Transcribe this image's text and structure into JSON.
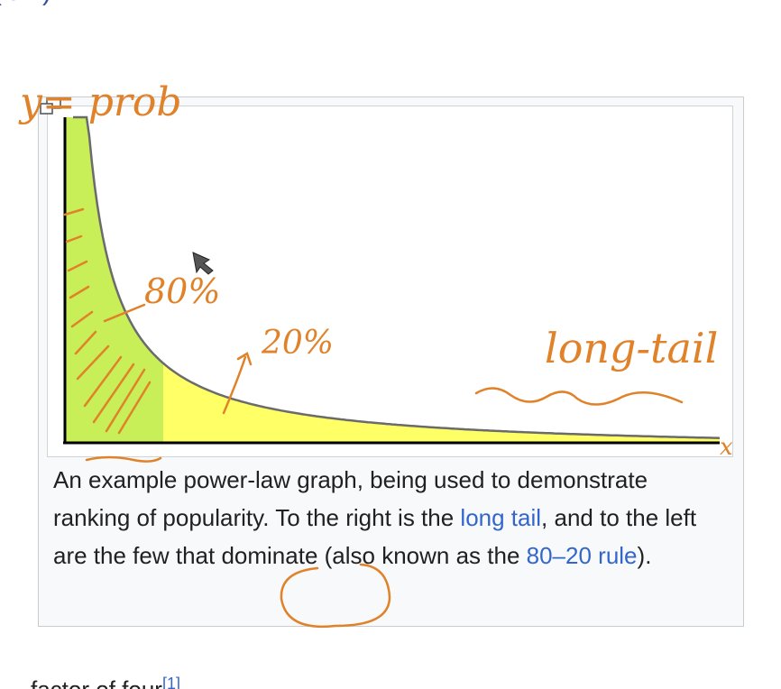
{
  "article": {
    "top_fragment": "(law).",
    "bottom_fragment": "factor of four",
    "bottom_reference": "[1]"
  },
  "figure": {
    "caption": {
      "part1": "An example power-law graph, being used to demonstrate ranking of popularity. To the right is the ",
      "link1": "long tail",
      "part2": ", and to the left are the few that dominate (also known as the ",
      "link2": "80–20 rule",
      "part3": ")."
    },
    "magnify_icon": "magnify-icon"
  },
  "chart_data": {
    "type": "area",
    "title": "",
    "xlabel": "",
    "ylabel": "",
    "grid": false,
    "description_of_shape": "power-law decay",
    "regions": [
      {
        "name": "head",
        "color": "#c8ee58"
      },
      {
        "name": "tail",
        "color": "#ffff66"
      }
    ],
    "curve_color": "#6b6b6b"
  },
  "annotations": {
    "y_label": "y= prob",
    "head_label": "80%",
    "tail_label": "20%",
    "long_tail_label": "long-tail",
    "x_label": "x",
    "ink_color": "#e0822a"
  },
  "colors": {
    "link": "#3366cc",
    "text": "#202122",
    "figure_bg": "#f8f9fa",
    "figure_border": "#c8ccd1"
  }
}
